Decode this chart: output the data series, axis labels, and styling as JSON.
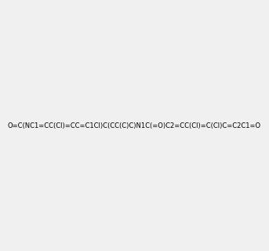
{
  "smiles": "O=C(NC1=CC(Cl)=CC=C1Cl)C(CC(C)C)N1C(=O)C2=CC(Cl)=C(Cl)C=C2C1=O",
  "bg_color": "#f0f0f0",
  "img_size": [
    300,
    300
  ]
}
